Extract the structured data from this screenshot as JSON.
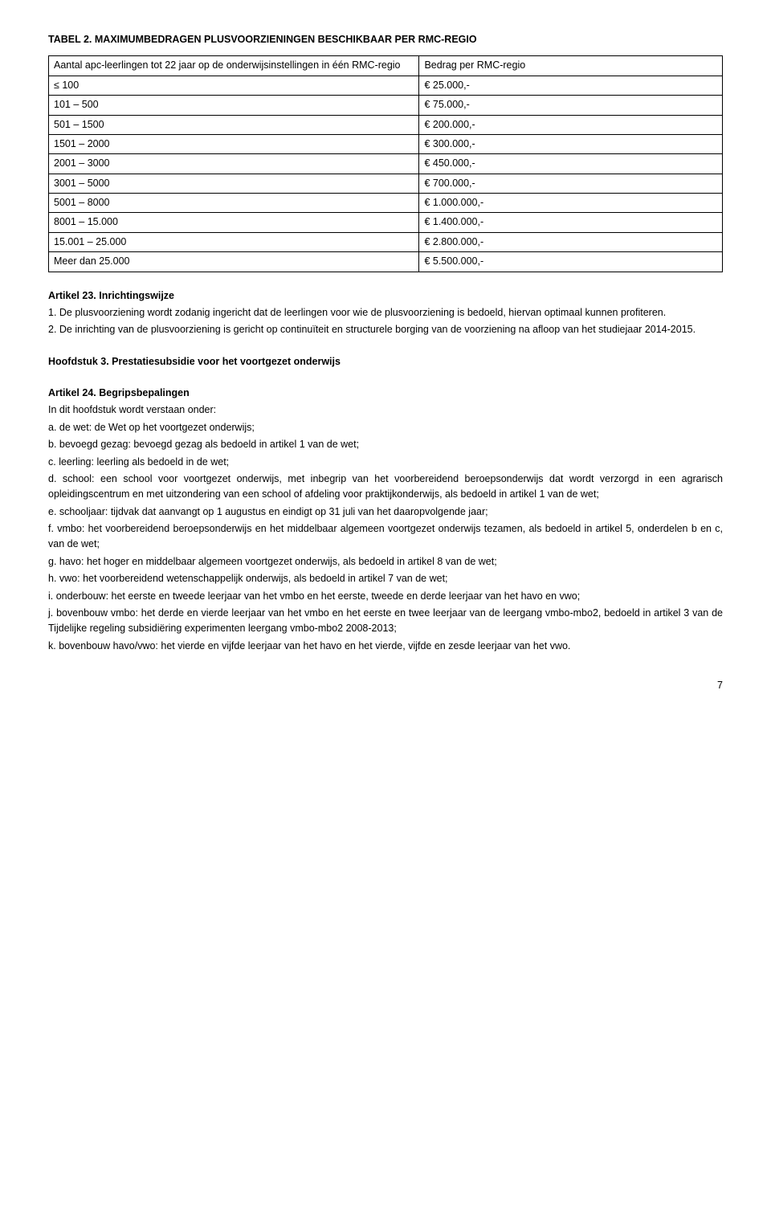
{
  "tableTitle": "TABEL 2. MAXIMUMBEDRAGEN PLUSVOORZIENINGEN BESCHIKBAAR PER RMC-REGIO",
  "table": {
    "header": {
      "left": "Aantal apc-leerlingen tot 22 jaar op de onderwijsinstellingen in één RMC-regio",
      "right": "Bedrag per RMC-regio"
    },
    "rows": [
      {
        "left": "≤ 100",
        "right": "€ 25.000,-"
      },
      {
        "left": "101 – 500",
        "right": "€ 75.000,-"
      },
      {
        "left": "501 – 1500",
        "right": "€ 200.000,-"
      },
      {
        "left": "1501 – 2000",
        "right": "€ 300.000,-"
      },
      {
        "left": "2001 – 3000",
        "right": "€ 450.000,-"
      },
      {
        "left": "3001 – 5000",
        "right": "€ 700.000,-"
      },
      {
        "left": "5001 – 8000",
        "right": "€ 1.000.000,-"
      },
      {
        "left": "8001 – 15.000",
        "right": "€ 1.400.000,-"
      },
      {
        "left": "15.001 – 25.000",
        "right": "€ 2.800.000,-"
      },
      {
        "left": "Meer dan 25.000",
        "right": "€ 5.500.000,-"
      }
    ]
  },
  "article23": {
    "title": "Artikel 23. Inrichtingswijze",
    "items": [
      "1. De plusvoorziening wordt zodanig ingericht dat de leerlingen voor wie de plusvoorziening is bedoeld, hiervan optimaal kunnen profiteren.",
      "2. De inrichting van de plusvoorziening is gericht op continuïteit en structurele borging van de voorziening na afloop van het studiejaar 2014-2015."
    ]
  },
  "chapter3": {
    "title": "Hoofdstuk 3. Prestatiesubsidie voor het voortgezet onderwijs"
  },
  "article24": {
    "title": "Artikel 24. Begripsbepalingen",
    "intro": "In dit hoofdstuk wordt verstaan onder:",
    "items": [
      "a. de wet: de Wet op het voortgezet onderwijs;",
      "b. bevoegd gezag: bevoegd gezag als bedoeld in artikel 1 van de wet;",
      "c. leerling: leerling als bedoeld in de wet;",
      "d. school: een school voor voortgezet onderwijs, met inbegrip van het voorbereidend beroepsonderwijs dat wordt verzorgd in een agrarisch opleidingscentrum en met uitzondering van een school of afdeling voor praktijkonderwijs, als bedoeld in artikel 1 van de wet;",
      "e. schooljaar: tijdvak dat aanvangt op 1 augustus en eindigt op 31 juli van het daaropvolgende jaar;",
      "f. vmbo: het voorbereidend beroepsonderwijs en het middelbaar algemeen voortgezet onderwijs tezamen, als bedoeld in artikel 5, onderdelen b en c, van de wet;",
      "g. havo: het hoger en middelbaar algemeen voortgezet onderwijs, als bedoeld in artikel 8 van de wet;",
      "h. vwo: het voorbereidend wetenschappelijk onderwijs, als bedoeld in artikel 7 van de wet;",
      "i. onderbouw: het eerste en tweede leerjaar van het vmbo en het eerste, tweede en derde leerjaar van het havo en vwo;",
      "j. bovenbouw vmbo: het derde en vierde leerjaar van het vmbo en het eerste en twee leerjaar van de leergang vmbo-mbo2, bedoeld in artikel 3 van de Tijdelijke regeling subsidiëring experimenten leergang vmbo-mbo2 2008-2013;",
      "k. bovenbouw havo/vwo: het vierde en vijfde leerjaar van het havo en het vierde, vijfde en zesde leerjaar van het vwo."
    ]
  },
  "pageNumber": "7"
}
